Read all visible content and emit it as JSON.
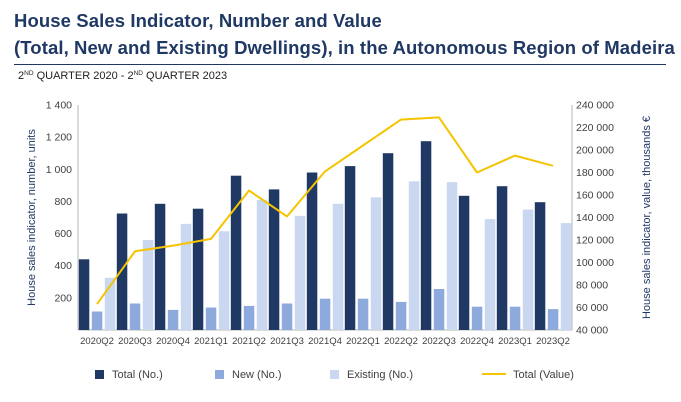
{
  "header": {
    "title_line1": "House Sales Indicator, Number and Value",
    "title_line2": "(Total, New and Existing Dwellings), in the Autonomous Region of Madeira",
    "subtitle_from_num": "2",
    "subtitle_from_sup": "ND",
    "subtitle_from_rest": " QUARTER 2020 - ",
    "subtitle_to_num": "2",
    "subtitle_to_sup": "ND",
    "subtitle_to_rest": " QUARTER  2023"
  },
  "chart_data": {
    "type": "bar",
    "categories": [
      "2020Q2",
      "2020Q3",
      "2020Q4",
      "2021Q1",
      "2021Q2",
      "2021Q3",
      "2021Q4",
      "2022Q1",
      "2022Q2",
      "2022Q3",
      "2022Q4",
      "2023Q1",
      "2023Q2"
    ],
    "series": [
      {
        "name": "Total (No.)",
        "type": "bar",
        "axis": "left",
        "color": "#1f3864",
        "values": [
          440,
          725,
          785,
          755,
          960,
          875,
          980,
          1020,
          1100,
          1175,
          835,
          895,
          795
        ]
      },
      {
        "name": "New (No.)",
        "type": "bar",
        "axis": "left",
        "color": "#8ea9db",
        "values": [
          115,
          165,
          125,
          140,
          150,
          165,
          195,
          195,
          175,
          255,
          145,
          145,
          130
        ]
      },
      {
        "name": "Existing (No.)",
        "type": "bar",
        "axis": "left",
        "color": "#c9d8f0",
        "values": [
          325,
          560,
          660,
          615,
          810,
          710,
          785,
          825,
          925,
          920,
          690,
          750,
          665
        ]
      },
      {
        "name": "Total (Value)",
        "type": "line",
        "axis": "right",
        "color": "#f5c400",
        "values": [
          63000,
          110000,
          115000,
          121000,
          164000,
          141000,
          181000,
          204000,
          227000,
          229000,
          180000,
          195000,
          186000
        ]
      }
    ],
    "ylabel": "House sales indicator, number, units",
    "ylabel_right": "House sales indicator, value, thousands €",
    "ylim": [
      0,
      1400
    ],
    "ylim_right": [
      40000,
      240000
    ],
    "yticks": [
      200,
      400,
      600,
      800,
      "1 000",
      "1 200",
      "1 400"
    ],
    "yticks_values": [
      200,
      400,
      600,
      800,
      1000,
      1200,
      1400
    ],
    "yticks_right": [
      "40 000",
      "60 000",
      "80 000",
      "100 000",
      "120 000",
      "140 000",
      "160 000",
      "180 000",
      "200 000",
      "220 000",
      "240 000"
    ],
    "yticks_right_values": [
      40000,
      60000,
      80000,
      100000,
      120000,
      140000,
      160000,
      180000,
      200000,
      220000,
      240000
    ],
    "legend_position": "bottom",
    "grid": false
  }
}
